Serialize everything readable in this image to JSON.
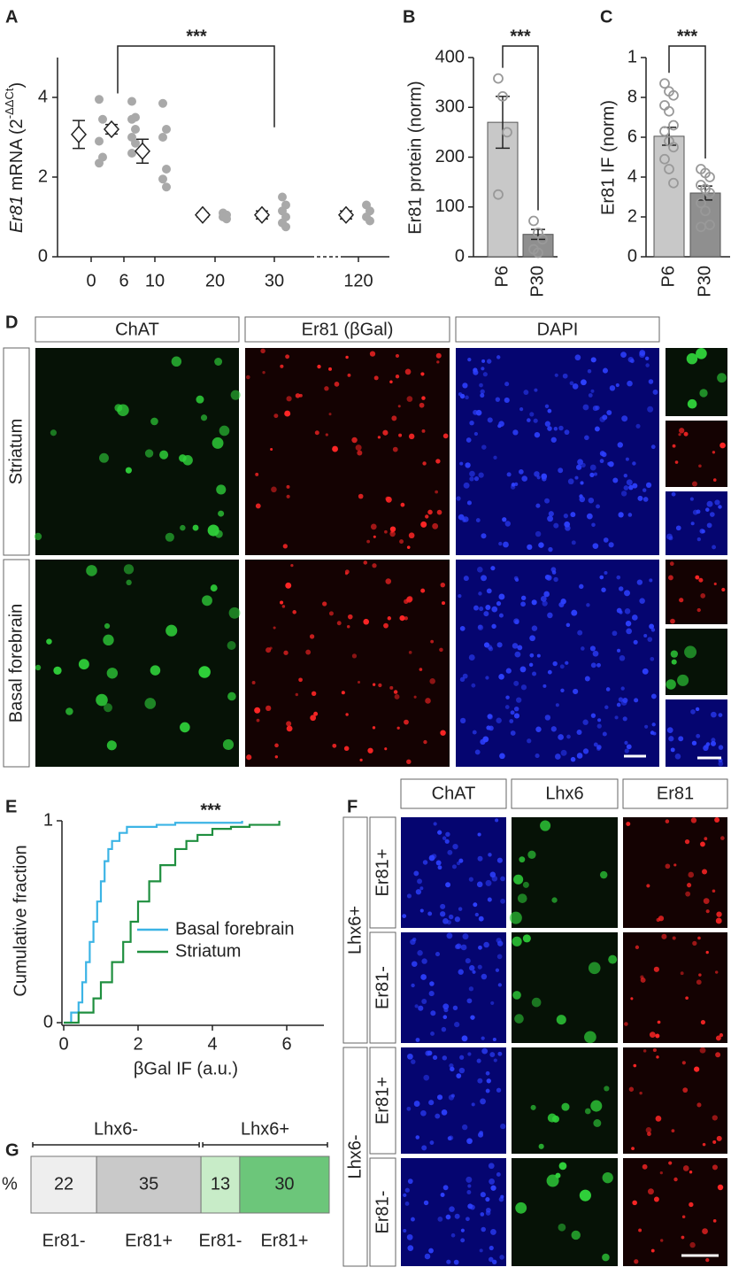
{
  "chart_data": [
    {
      "type": "dot_mean",
      "panel_label": "A",
      "y_label": {
        "gene": "Er81",
        "text": " mRNA (2",
        "superscript": "-ΔΔCt",
        "close": ")"
      },
      "categories": [
        "0",
        "6",
        "10",
        "20",
        "30",
        "120"
      ],
      "means": [
        3.07,
        3.2,
        2.65,
        1.05,
        1.05,
        1.05
      ],
      "errors": [
        0.35,
        0.12,
        0.3,
        0.05,
        0.1,
        0.1
      ],
      "points": [
        [
          3.95,
          3.45,
          2.9,
          2.5,
          2.35
        ],
        [
          3.9,
          3.5,
          3.45,
          3.2,
          3.0,
          2.85,
          2.6
        ],
        [
          3.85,
          3.2,
          3.0,
          2.2,
          1.95,
          1.75
        ],
        [
          1.1,
          1.05,
          1.0,
          0.95
        ],
        [
          1.5,
          1.3,
          1.15,
          1.0,
          0.85,
          0.75
        ],
        [
          1.3,
          1.15,
          1.0,
          0.9
        ]
      ],
      "ylim": [
        0,
        5
      ],
      "yticks": [
        0,
        2,
        4
      ],
      "significance": "***"
    },
    {
      "type": "bar",
      "panel_label": "B",
      "y_label": "Er81 protein (norm)",
      "categories": [
        "P6",
        "P30"
      ],
      "colors": [
        "#c8c8c8",
        "#8f8f8f"
      ],
      "means": [
        270,
        45
      ],
      "errors": [
        52,
        10
      ],
      "points": [
        [
          358,
          322,
          250,
          125
        ],
        [
          72,
          48,
          35,
          15,
          8
        ]
      ],
      "ylim": [
        0,
        400
      ],
      "yticks": [
        0,
        100,
        200,
        300,
        400
      ],
      "significance": "***"
    },
    {
      "type": "bar",
      "panel_label": "C",
      "y_label": "Er81 IF (norm)",
      "categories": [
        "P6",
        "P30"
      ],
      "colors": [
        "#c8c8c8",
        "#8f8f8f"
      ],
      "means": [
        6.05,
        3.2
      ],
      "errors": [
        0.45,
        0.35
      ],
      "points": [
        [
          8.7,
          8.3,
          8.1,
          7.6,
          7.3,
          6.6,
          6.3,
          5.8,
          5.5,
          4.9,
          4.4,
          3.7
        ],
        [
          4.4,
          4.2,
          4.0,
          3.6,
          3.4,
          3.2,
          2.7,
          2.3,
          1.6,
          1.5
        ]
      ],
      "ylim": [
        0,
        10
      ],
      "yticks": [
        0,
        2,
        4,
        6,
        8,
        {
          "value": 10,
          "label": "1"
        }
      ],
      "significance": "***"
    },
    {
      "type": "line",
      "panel_label": "E",
      "y_label": "Cumulative fraction",
      "x_label": "βGal IF (a.u.)",
      "series": [
        {
          "name": "Basal forebrain",
          "color": "#3cb4e5",
          "x": [
            0,
            0.2,
            0.4,
            0.5,
            0.6,
            0.7,
            0.8,
            0.9,
            1.0,
            1.1,
            1.2,
            1.3,
            1.5,
            1.7,
            2,
            2.5,
            3,
            4,
            4.8
          ],
          "values": [
            0,
            0.05,
            0.1,
            0.2,
            0.3,
            0.4,
            0.5,
            0.6,
            0.7,
            0.8,
            0.86,
            0.9,
            0.94,
            0.97,
            0.97,
            0.98,
            0.99,
            0.99,
            1
          ]
        },
        {
          "name": "Striatum",
          "color": "#1f8f3f",
          "x": [
            0,
            0.4,
            0.8,
            1.0,
            1.3,
            1.6,
            1.8,
            2.0,
            2.3,
            2.6,
            3.0,
            3.3,
            3.6,
            4,
            4.5,
            5,
            5.8
          ],
          "values": [
            0,
            0.05,
            0.12,
            0.2,
            0.3,
            0.4,
            0.5,
            0.6,
            0.7,
            0.78,
            0.86,
            0.9,
            0.93,
            0.96,
            0.97,
            0.98,
            1
          ]
        }
      ],
      "xlim": [
        0,
        7
      ],
      "xticks": [
        0,
        2,
        4,
        6
      ],
      "ylim": [
        0,
        1
      ],
      "yticks": [
        0,
        1
      ],
      "significance": "***"
    },
    {
      "type": "stacked_bar",
      "panel_label": "G",
      "unit_label": "%",
      "groups": [
        {
          "label": "Lhx6-",
          "label_color": "#222222",
          "series": [
            {
              "name": "Er81-",
              "color": "#eeeeee",
              "values": [
                22
              ]
            },
            {
              "name": "Er81+",
              "color": "#c9c9c9",
              "values": [
                35
              ]
            }
          ]
        },
        {
          "label": "Lhx6+",
          "label_color": "#22a84a",
          "series": [
            {
              "name": "Er81-",
              "color": "#c8ecc8",
              "values": [
                13
              ]
            },
            {
              "name": "Er81+",
              "color": "#6cc67a",
              "values": [
                30
              ]
            }
          ]
        }
      ]
    }
  ],
  "panel_d": {
    "label": "D",
    "columns": [
      {
        "label": "ChAT",
        "color": "#22b04a"
      },
      {
        "label": "Er81 (βGal)",
        "color": "#e8202a"
      },
      {
        "label": "DAPI",
        "color": "#2a7ccc"
      }
    ],
    "rows": [
      "Striatum",
      "Basal forebrain"
    ]
  },
  "panel_f": {
    "label": "F",
    "columns": [
      {
        "label": "ChAT",
        "color": "#2a7ccc"
      },
      {
        "label": "Lhx6",
        "color": "#22b04a"
      },
      {
        "label": "Er81",
        "color": "#e8202a"
      }
    ],
    "groups": [
      {
        "label": "Lhx6+",
        "rows": [
          "Er81+",
          "Er81-"
        ]
      },
      {
        "label": "Lhx6-",
        "rows": [
          "Er81+",
          "Er81-"
        ]
      }
    ]
  }
}
